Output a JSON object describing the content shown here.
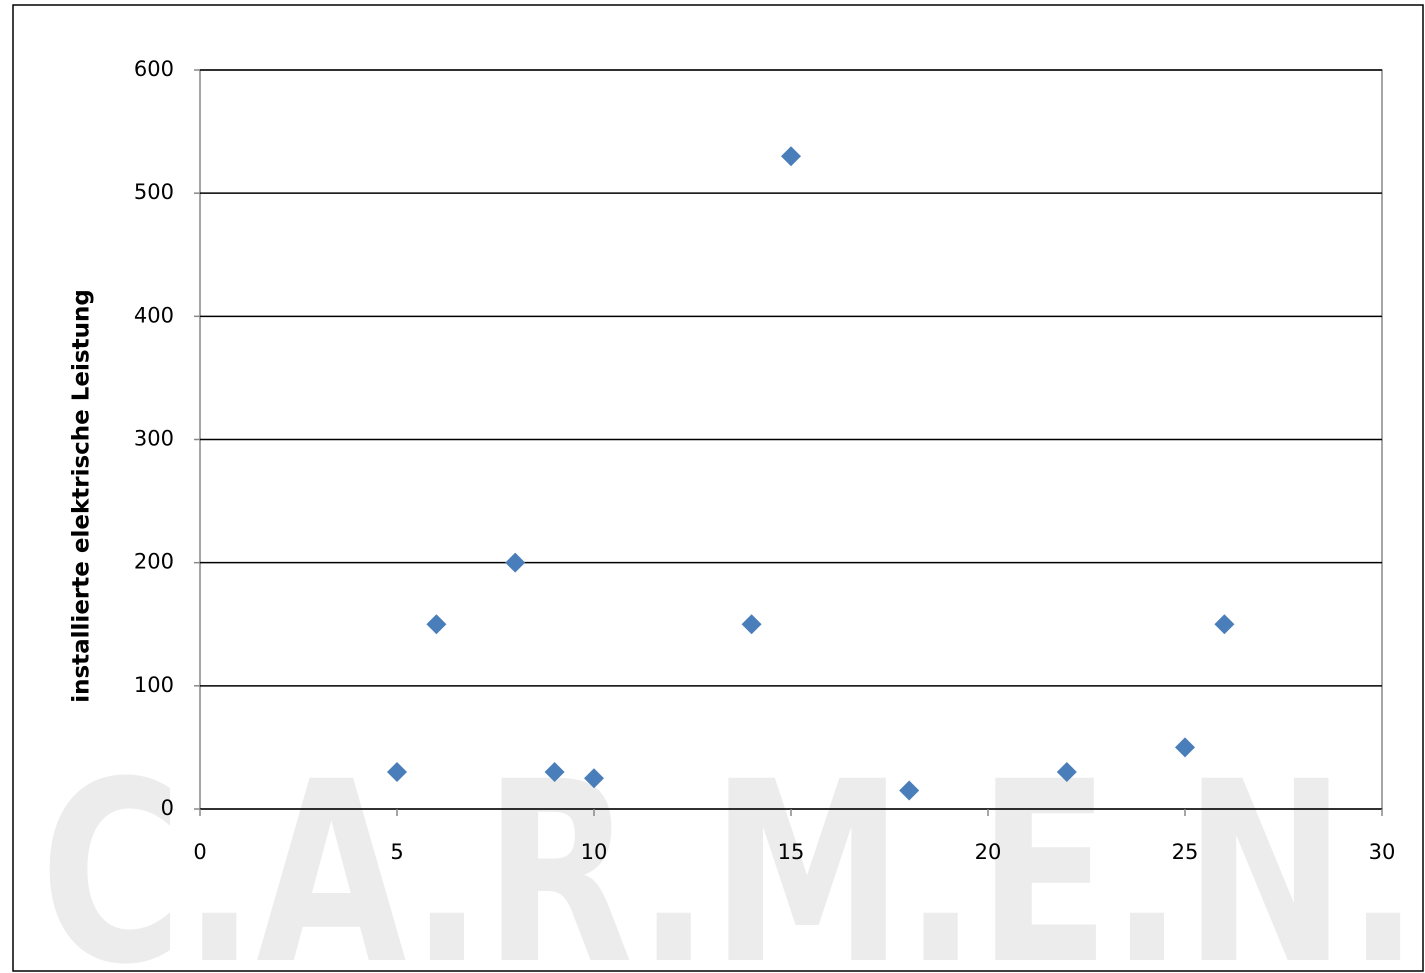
{
  "chart_data": {
    "type": "scatter",
    "y_label": "installierte elektrische Leistung",
    "watermark": "C.A.R.M.E.N.",
    "x": [
      5,
      6,
      8,
      9,
      10,
      14,
      15,
      18,
      22,
      25,
      26
    ],
    "series": [
      {
        "color": "#4a7ebb",
        "values": [
          30,
          150,
          200,
          30,
          25,
          150,
          530,
          15,
          30,
          50,
          150
        ]
      }
    ],
    "xlim": [
      0,
      30
    ],
    "xticks": [
      0,
      5,
      10,
      15,
      20,
      25,
      30
    ],
    "ylim": [
      0,
      600
    ],
    "yticks": [
      0,
      100,
      200,
      300,
      400,
      500,
      600
    ],
    "grid": true
  }
}
